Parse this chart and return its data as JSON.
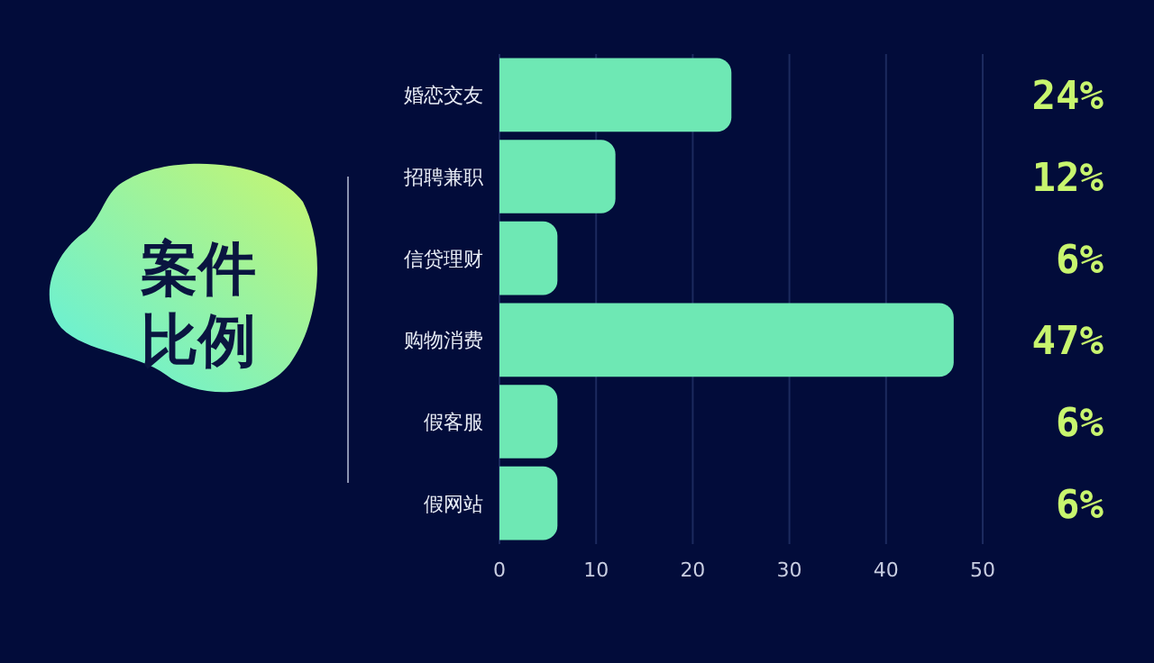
{
  "chart_data": {
    "type": "bar",
    "orientation": "horizontal",
    "title": "案件比例",
    "categories": [
      "婚恋交友",
      "招聘兼职",
      "信贷理财",
      "购物消费",
      "假客服",
      "假网站"
    ],
    "values": [
      24,
      12,
      6,
      47,
      6,
      6
    ],
    "value_labels": [
      "24%",
      "12%",
      "6%",
      "47%",
      "6%",
      "6%"
    ],
    "color": "#6ee8b4",
    "xlim": [
      0,
      50
    ],
    "xticks": [
      0,
      10,
      20,
      30,
      40,
      50
    ],
    "grid": "x"
  }
}
